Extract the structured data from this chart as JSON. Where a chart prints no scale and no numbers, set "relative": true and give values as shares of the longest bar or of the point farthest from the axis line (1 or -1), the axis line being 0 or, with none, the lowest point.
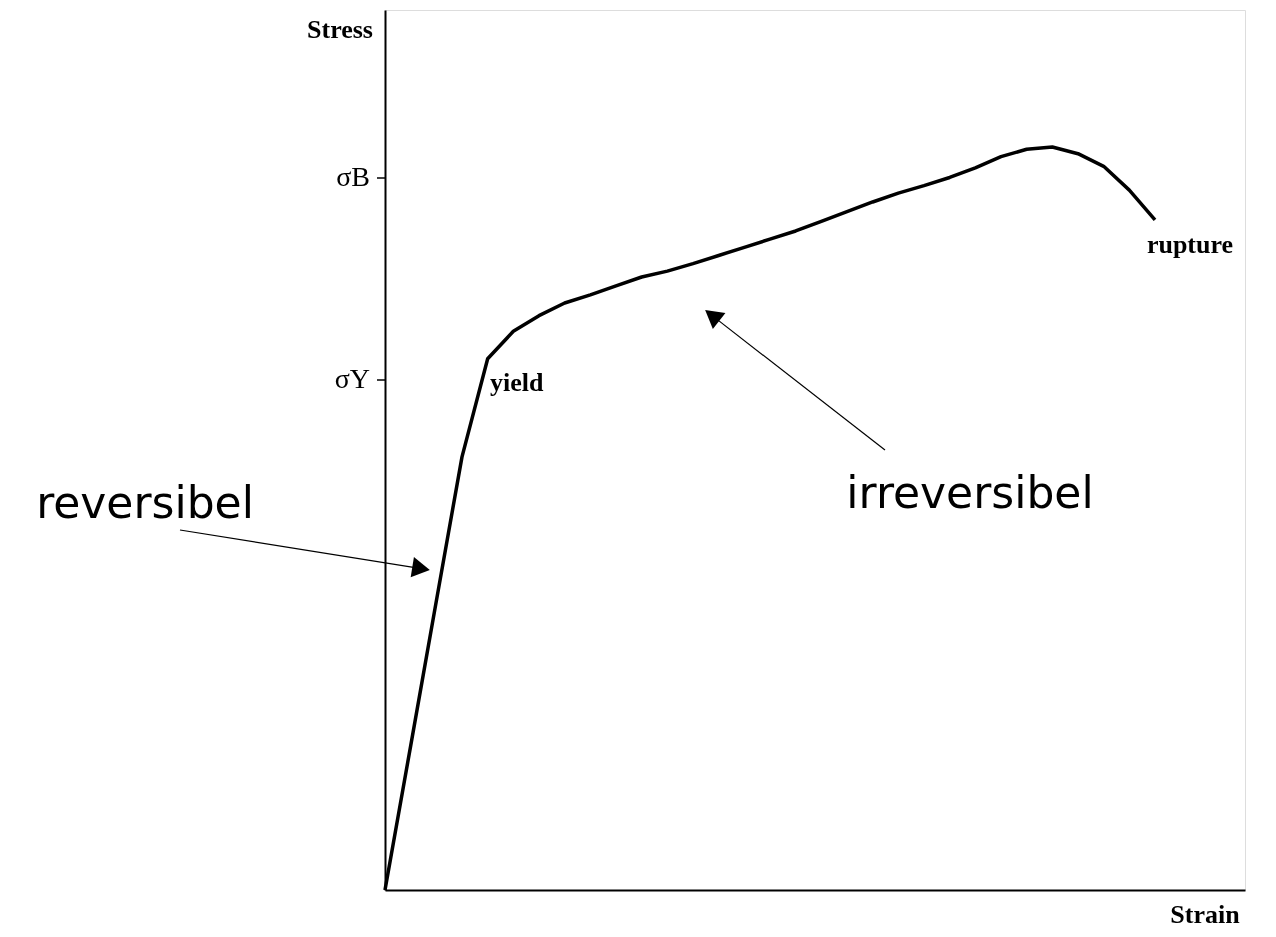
{
  "chart_data": {
    "type": "line",
    "relative": true,
    "xlabel": "Strain",
    "ylabel": "Stress",
    "categories": [
      null,
      null,
      null,
      null,
      null,
      null,
      null,
      null,
      null,
      null,
      null,
      null,
      null,
      null,
      null,
      null,
      null,
      null,
      null,
      null,
      null,
      null,
      null,
      null,
      null,
      null,
      null,
      null,
      null,
      null,
      null
    ],
    "series": [
      {
        "color": "#000000",
        "values": [
          0,
          0.194,
          0.389,
          0.583,
          0.715,
          0.752,
          0.773,
          0.79,
          0.801,
          0.813,
          0.825,
          0.833,
          0.843,
          0.854,
          0.865,
          0.876,
          0.887,
          0.9,
          0.913,
          0.926,
          0.938,
          0.948,
          0.959,
          0.972,
          0.987,
          0.997,
          1,
          0.991,
          0.974,
          0.942,
          0.902
        ]
      }
    ],
    "marker": "none",
    "line_style": "solid",
    "annotations": [
      "σB",
      "σY",
      "yield",
      "rupture",
      "reversibel",
      "irreversibel"
    ]
  }
}
